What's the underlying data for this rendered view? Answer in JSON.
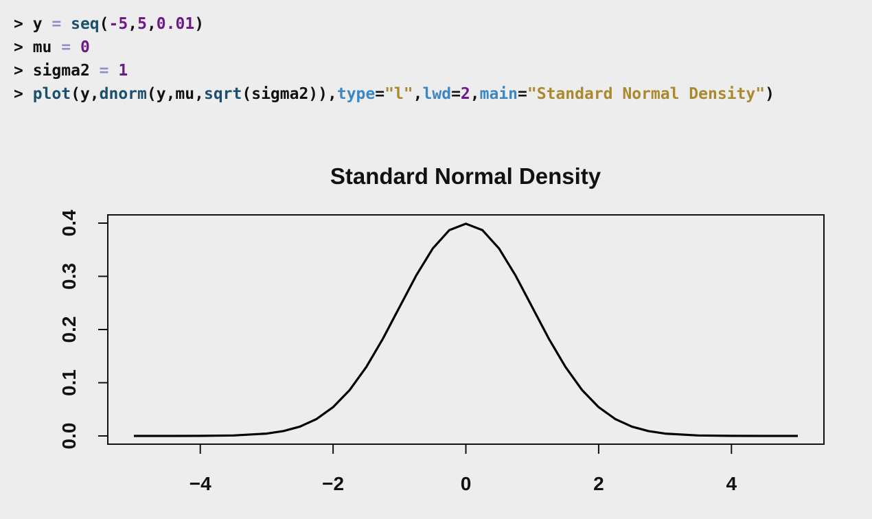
{
  "console": {
    "lines": [
      [
        {
          "t": "> ",
          "c": "prompt"
        },
        {
          "t": "y",
          "c": "var"
        },
        {
          "t": " = ",
          "c": "op"
        },
        {
          "t": "seq",
          "c": "func"
        },
        {
          "t": "(",
          "c": "punc"
        },
        {
          "t": "-5",
          "c": "num"
        },
        {
          "t": ",",
          "c": "punc"
        },
        {
          "t": "5",
          "c": "num"
        },
        {
          "t": ",",
          "c": "punc"
        },
        {
          "t": "0.01",
          "c": "num"
        },
        {
          "t": ")",
          "c": "punc"
        }
      ],
      [
        {
          "t": "> ",
          "c": "prompt"
        },
        {
          "t": "mu",
          "c": "var"
        },
        {
          "t": " = ",
          "c": "op"
        },
        {
          "t": "0",
          "c": "num"
        }
      ],
      [
        {
          "t": "> ",
          "c": "prompt"
        },
        {
          "t": "sigma2",
          "c": "var"
        },
        {
          "t": " = ",
          "c": "op"
        },
        {
          "t": "1",
          "c": "num"
        }
      ],
      [
        {
          "t": "> ",
          "c": "prompt"
        },
        {
          "t": "plot",
          "c": "func"
        },
        {
          "t": "(y,",
          "c": "punc"
        },
        {
          "t": "dnorm",
          "c": "func"
        },
        {
          "t": "(y,mu,",
          "c": "punc"
        },
        {
          "t": "sqrt",
          "c": "func"
        },
        {
          "t": "(sigma2)),",
          "c": "punc"
        },
        {
          "t": "type",
          "c": "arg"
        },
        {
          "t": "=",
          "c": "punc"
        },
        {
          "t": "\"l\"",
          "c": "str"
        },
        {
          "t": ",",
          "c": "punc"
        },
        {
          "t": "lwd",
          "c": "arg"
        },
        {
          "t": "=",
          "c": "punc"
        },
        {
          "t": "2",
          "c": "num"
        },
        {
          "t": ",",
          "c": "punc"
        },
        {
          "t": "main",
          "c": "arg"
        },
        {
          "t": "=",
          "c": "punc"
        },
        {
          "t": "\"Standard Normal Density\"",
          "c": "str"
        },
        {
          "t": ")",
          "c": "punc"
        }
      ]
    ]
  },
  "chart_data": {
    "type": "line",
    "title": "Standard Normal Density",
    "xlabel": "",
    "ylabel": "",
    "xlim": [
      -5,
      5
    ],
    "ylim": [
      0,
      0.4
    ],
    "x_ticks": [
      -4,
      -2,
      0,
      2,
      4
    ],
    "x_tick_labels": [
      "−4",
      "−2",
      "0",
      "2",
      "4"
    ],
    "y_ticks": [
      0.0,
      0.1,
      0.2,
      0.3,
      0.4
    ],
    "y_tick_labels": [
      "0.0",
      "0.1",
      "0.2",
      "0.3",
      "0.4"
    ],
    "grid": false,
    "legend": "none",
    "line_color": "#000000",
    "series": [
      {
        "x": [
          -5,
          -4.5,
          -4,
          -3.5,
          -3,
          -2.75,
          -2.5,
          -2.25,
          -2,
          -1.75,
          -1.5,
          -1.25,
          -1,
          -0.75,
          -0.5,
          -0.25,
          0,
          0.25,
          0.5,
          0.75,
          1,
          1.25,
          1.5,
          1.75,
          2,
          2.25,
          2.5,
          2.75,
          3,
          3.5,
          4,
          4.5,
          5
        ],
        "y": [
          0.0,
          0.0,
          0.0001,
          0.0009,
          0.0044,
          0.0091,
          0.0175,
          0.0317,
          0.054,
          0.0863,
          0.1295,
          0.1826,
          0.242,
          0.3011,
          0.3521,
          0.3867,
          0.3989,
          0.3867,
          0.3521,
          0.3011,
          0.242,
          0.1826,
          0.1295,
          0.0863,
          0.054,
          0.0317,
          0.0175,
          0.0091,
          0.0044,
          0.0009,
          0.0001,
          0.0,
          0.0
        ]
      }
    ]
  }
}
